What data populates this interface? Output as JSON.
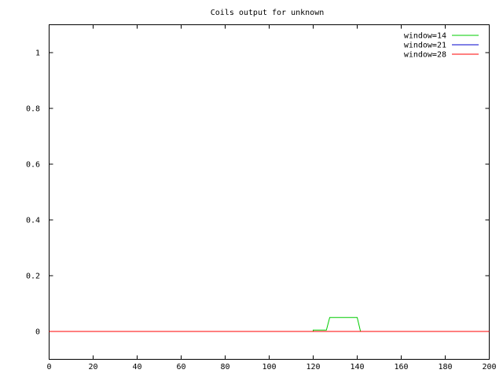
{
  "chart_data": {
    "type": "line",
    "title": "Coils output for unknown",
    "xlabel": "",
    "ylabel": "",
    "xlim": [
      0,
      200
    ],
    "ylim": [
      -0.1,
      1.1
    ],
    "xticks": [
      0,
      20,
      40,
      60,
      80,
      100,
      120,
      140,
      160,
      180,
      200
    ],
    "yticks": [
      0,
      0.2,
      0.4,
      0.6,
      0.8,
      1
    ],
    "ytick_labels": [
      "0",
      "0.2",
      "0.4",
      "0.6",
      "0.8",
      "1"
    ],
    "grid": false,
    "legend": "top-right",
    "series": [
      {
        "name": "window=14",
        "color": "#00cc00",
        "points": [
          [
            0,
            0
          ],
          [
            120,
            0
          ],
          [
            120,
            0.005
          ],
          [
            126,
            0.005
          ],
          [
            127.5,
            0.05
          ],
          [
            140,
            0.05
          ],
          [
            141.5,
            0
          ],
          [
            200,
            0
          ]
        ]
      },
      {
        "name": "window=21",
        "color": "#0000cc",
        "points": [
          [
            0,
            0
          ],
          [
            200,
            0
          ]
        ]
      },
      {
        "name": "window=28",
        "color": "#ff0000",
        "points": [
          [
            0,
            0
          ],
          [
            200,
            0
          ]
        ]
      }
    ]
  }
}
